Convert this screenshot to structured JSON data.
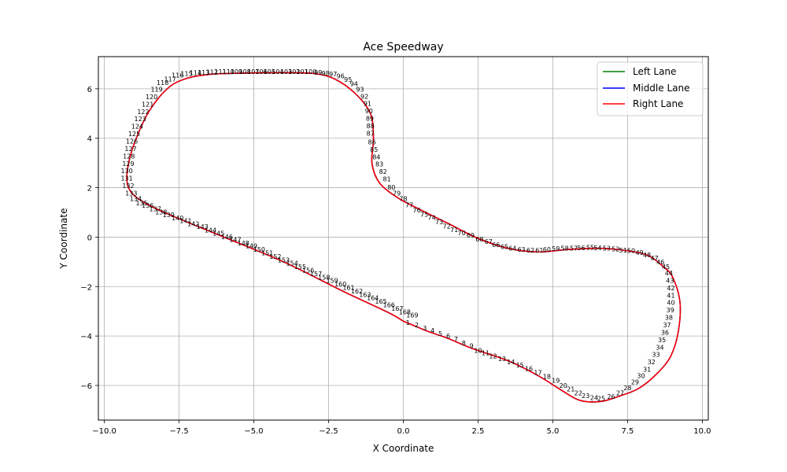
{
  "chart_data": {
    "type": "line",
    "title": "Ace Speedway",
    "xlabel": "X Coordinate",
    "ylabel": "Y Coordinate",
    "xlim": [
      -10.2,
      10.2
    ],
    "ylim": [
      -7.4,
      7.3
    ],
    "xticks": [
      -10.0,
      -7.5,
      -5.0,
      -2.5,
      0.0,
      2.5,
      5.0,
      7.5,
      10.0
    ],
    "xtick_labels": [
      "−10.0",
      "−7.5",
      "−5.0",
      "−2.5",
      "0.0",
      "2.5",
      "5.0",
      "7.5",
      "10.0"
    ],
    "yticks": [
      -6,
      -4,
      -2,
      0,
      2,
      4,
      6
    ],
    "ytick_labels": [
      "−6",
      "−4",
      "−2",
      "0",
      "2",
      "4",
      "6"
    ],
    "grid": true,
    "legend_position": "top-right",
    "series": [
      {
        "name": "Left Lane",
        "color": "#008000"
      },
      {
        "name": "Middle Lane",
        "color": "#0000ff"
      },
      {
        "name": "Right Lane",
        "color": "#ff0000"
      }
    ],
    "track_points": [
      [
        0.0,
        -3.4
      ],
      [
        0.3,
        -3.55
      ],
      [
        0.8,
        -3.8
      ],
      [
        1.5,
        -4.1
      ],
      [
        2.3,
        -4.5
      ],
      [
        3.5,
        -5.0
      ],
      [
        4.5,
        -5.6
      ],
      [
        5.3,
        -6.2
      ],
      [
        5.9,
        -6.6
      ],
      [
        6.6,
        -6.65
      ],
      [
        7.3,
        -6.4
      ],
      [
        7.9,
        -6.1
      ],
      [
        8.5,
        -5.5
      ],
      [
        8.95,
        -4.8
      ],
      [
        9.2,
        -3.8
      ],
      [
        9.25,
        -2.6
      ],
      [
        9.0,
        -1.6
      ],
      [
        8.7,
        -1.2
      ],
      [
        8.2,
        -0.75
      ],
      [
        7.5,
        -0.55
      ],
      [
        6.5,
        -0.45
      ],
      [
        5.5,
        -0.5
      ],
      [
        4.5,
        -0.6
      ],
      [
        3.5,
        -0.45
      ],
      [
        2.5,
        -0.05
      ],
      [
        1.5,
        0.55
      ],
      [
        0.5,
        1.15
      ],
      [
        -0.2,
        1.6
      ],
      [
        -0.8,
        2.2
      ],
      [
        -1.05,
        3.0
      ],
      [
        -1.0,
        4.0
      ],
      [
        -1.1,
        5.0
      ],
      [
        -1.6,
        5.8
      ],
      [
        -2.3,
        6.4
      ],
      [
        -3.0,
        6.62
      ],
      [
        -4.0,
        6.65
      ],
      [
        -5.5,
        6.63
      ],
      [
        -6.5,
        6.58
      ],
      [
        -7.3,
        6.4
      ],
      [
        -7.9,
        6.0
      ],
      [
        -8.5,
        5.1
      ],
      [
        -8.9,
        4.1
      ],
      [
        -9.15,
        3.2
      ],
      [
        -9.25,
        2.4
      ],
      [
        -9.15,
        1.9
      ],
      [
        -8.8,
        1.5
      ],
      [
        -8.0,
        1.0
      ],
      [
        -6.0,
        0.0
      ],
      [
        -4.0,
        -1.0
      ],
      [
        -2.0,
        -2.2
      ],
      [
        -0.5,
        -3.05
      ],
      [
        0.0,
        -3.4
      ]
    ],
    "waypoint_labels": [
      {
        "t": "1",
        "x": 0.15,
        "y": -3.45
      },
      {
        "t": "2",
        "x": 0.45,
        "y": -3.55
      },
      {
        "t": "3",
        "x": 0.72,
        "y": -3.68
      },
      {
        "t": "4",
        "x": 0.98,
        "y": -3.78
      },
      {
        "t": "5",
        "x": 1.24,
        "y": -3.9
      },
      {
        "t": "6",
        "x": 1.5,
        "y": -4.0
      },
      {
        "t": "7",
        "x": 1.76,
        "y": -4.12
      },
      {
        "t": "8",
        "x": 2.02,
        "y": -4.28
      },
      {
        "t": "9",
        "x": 2.28,
        "y": -4.4
      },
      {
        "t": "10",
        "x": 2.5,
        "y": -4.58
      },
      {
        "t": "11",
        "x": 2.75,
        "y": -4.68
      },
      {
        "t": "12",
        "x": 3.0,
        "y": -4.8
      },
      {
        "t": "13",
        "x": 3.3,
        "y": -4.92
      },
      {
        "t": "14",
        "x": 3.6,
        "y": -5.05
      },
      {
        "t": "15",
        "x": 3.9,
        "y": -5.18
      },
      {
        "t": "16",
        "x": 4.2,
        "y": -5.32
      },
      {
        "t": "17",
        "x": 4.5,
        "y": -5.48
      },
      {
        "t": "18",
        "x": 4.8,
        "y": -5.63
      },
      {
        "t": "19",
        "x": 5.1,
        "y": -5.8
      },
      {
        "t": "20",
        "x": 5.35,
        "y": -6.0
      },
      {
        "t": "21",
        "x": 5.6,
        "y": -6.15
      },
      {
        "t": "22",
        "x": 5.85,
        "y": -6.3
      },
      {
        "t": "23",
        "x": 6.1,
        "y": -6.42
      },
      {
        "t": "24",
        "x": 6.38,
        "y": -6.5
      },
      {
        "t": "25",
        "x": 6.62,
        "y": -6.52
      },
      {
        "t": "26",
        "x": 6.95,
        "y": -6.45
      },
      {
        "t": "27",
        "x": 7.25,
        "y": -6.3
      },
      {
        "t": "28",
        "x": 7.5,
        "y": -6.1
      },
      {
        "t": "29",
        "x": 7.75,
        "y": -5.85
      },
      {
        "t": "30",
        "x": 7.95,
        "y": -5.6
      },
      {
        "t": "31",
        "x": 8.15,
        "y": -5.35
      },
      {
        "t": "32",
        "x": 8.3,
        "y": -5.05
      },
      {
        "t": "33",
        "x": 8.45,
        "y": -4.75
      },
      {
        "t": "34",
        "x": 8.58,
        "y": -4.45
      },
      {
        "t": "35",
        "x": 8.65,
        "y": -4.15
      },
      {
        "t": "36",
        "x": 8.75,
        "y": -3.85
      },
      {
        "t": "37",
        "x": 8.82,
        "y": -3.55
      },
      {
        "t": "38",
        "x": 8.88,
        "y": -3.25
      },
      {
        "t": "39",
        "x": 8.93,
        "y": -2.95
      },
      {
        "t": "40",
        "x": 8.95,
        "y": -2.65
      },
      {
        "t": "41",
        "x": 8.95,
        "y": -2.35
      },
      {
        "t": "42",
        "x": 8.95,
        "y": -2.05
      },
      {
        "t": "43",
        "x": 8.92,
        "y": -1.75
      },
      {
        "t": "44",
        "x": 8.88,
        "y": -1.45
      },
      {
        "t": "45",
        "x": 8.78,
        "y": -1.2
      },
      {
        "t": "46",
        "x": 8.6,
        "y": -1.0
      },
      {
        "t": "47",
        "x": 8.4,
        "y": -0.85
      },
      {
        "t": "48",
        "x": 8.15,
        "y": -0.72
      },
      {
        "t": "49",
        "x": 7.9,
        "y": -0.62
      },
      {
        "t": "50",
        "x": 7.62,
        "y": -0.55
      },
      {
        "t": "51",
        "x": 7.35,
        "y": -0.52
      },
      {
        "t": "52",
        "x": 7.1,
        "y": -0.48
      },
      {
        "t": "53",
        "x": 6.8,
        "y": -0.45
      },
      {
        "t": "54",
        "x": 6.5,
        "y": -0.43
      },
      {
        "t": "55",
        "x": 6.25,
        "y": -0.42
      },
      {
        "t": "56",
        "x": 5.95,
        "y": -0.43
      },
      {
        "t": "57",
        "x": 5.7,
        "y": -0.44
      },
      {
        "t": "58",
        "x": 5.4,
        "y": -0.45
      },
      {
        "t": "59",
        "x": 5.1,
        "y": -0.47
      },
      {
        "t": "60",
        "x": 4.8,
        "y": -0.5
      },
      {
        "t": "61",
        "x": 4.55,
        "y": -0.52
      },
      {
        "t": "62",
        "x": 4.25,
        "y": -0.52
      },
      {
        "t": "63",
        "x": 3.95,
        "y": -0.5
      },
      {
        "t": "64",
        "x": 3.65,
        "y": -0.45
      },
      {
        "t": "65",
        "x": 3.38,
        "y": -0.38
      },
      {
        "t": "66",
        "x": 3.1,
        "y": -0.3
      },
      {
        "t": "67",
        "x": 2.85,
        "y": -0.18
      },
      {
        "t": "68",
        "x": 2.55,
        "y": -0.08
      },
      {
        "t": "69",
        "x": 2.25,
        "y": 0.08
      },
      {
        "t": "70",
        "x": 1.95,
        "y": 0.18
      },
      {
        "t": "71",
        "x": 1.7,
        "y": 0.3
      },
      {
        "t": "72",
        "x": 1.45,
        "y": 0.45
      },
      {
        "t": "73",
        "x": 1.2,
        "y": 0.62
      },
      {
        "t": "74",
        "x": 0.95,
        "y": 0.8
      },
      {
        "t": "75",
        "x": 0.7,
        "y": 0.92
      },
      {
        "t": "76",
        "x": 0.45,
        "y": 1.1
      },
      {
        "t": "77",
        "x": 0.2,
        "y": 1.3
      },
      {
        "t": "78",
        "x": 0.0,
        "y": 1.55
      },
      {
        "t": "79",
        "x": -0.22,
        "y": 1.78
      },
      {
        "t": "80",
        "x": -0.4,
        "y": 2.02
      },
      {
        "t": "81",
        "x": -0.55,
        "y": 2.35
      },
      {
        "t": "82",
        "x": -0.68,
        "y": 2.65
      },
      {
        "t": "83",
        "x": -0.8,
        "y": 2.95
      },
      {
        "t": "84",
        "x": -0.9,
        "y": 3.25
      },
      {
        "t": "85",
        "x": -0.98,
        "y": 3.55
      },
      {
        "t": "86",
        "x": -1.05,
        "y": 3.85
      },
      {
        "t": "87",
        "x": -1.1,
        "y": 4.2
      },
      {
        "t": "88",
        "x": -1.1,
        "y": 4.5
      },
      {
        "t": "89",
        "x": -1.12,
        "y": 4.8
      },
      {
        "t": "90",
        "x": -1.15,
        "y": 5.1
      },
      {
        "t": "91",
        "x": -1.2,
        "y": 5.4
      },
      {
        "t": "92",
        "x": -1.3,
        "y": 5.7
      },
      {
        "t": "93",
        "x": -1.45,
        "y": 5.98
      },
      {
        "t": "94",
        "x": -1.65,
        "y": 6.2
      },
      {
        "t": "95",
        "x": -1.85,
        "y": 6.38
      },
      {
        "t": "96",
        "x": -2.1,
        "y": 6.52
      },
      {
        "t": "97",
        "x": -2.35,
        "y": 6.6
      },
      {
        "t": "98",
        "x": -2.6,
        "y": 6.63
      },
      {
        "t": "99",
        "x": -2.85,
        "y": 6.66
      },
      {
        "t": "100",
        "x": -3.1,
        "y": 6.69
      },
      {
        "t": "101",
        "x": -3.38,
        "y": 6.7
      },
      {
        "t": "102",
        "x": -3.65,
        "y": 6.7
      },
      {
        "t": "103",
        "x": -3.92,
        "y": 6.7
      },
      {
        "t": "104",
        "x": -4.2,
        "y": 6.7
      },
      {
        "t": "105",
        "x": -4.48,
        "y": 6.7
      },
      {
        "t": "106",
        "x": -4.75,
        "y": 6.7
      },
      {
        "t": "107",
        "x": -5.02,
        "y": 6.7
      },
      {
        "t": "108",
        "x": -5.3,
        "y": 6.7
      },
      {
        "t": "109",
        "x": -5.58,
        "y": 6.7
      },
      {
        "t": "110",
        "x": -5.85,
        "y": 6.7
      },
      {
        "t": "111",
        "x": -6.12,
        "y": 6.7
      },
      {
        "t": "112",
        "x": -6.4,
        "y": 6.68
      },
      {
        "t": "113",
        "x": -6.68,
        "y": 6.66
      },
      {
        "t": "114",
        "x": -6.95,
        "y": 6.64
      },
      {
        "t": "115",
        "x": -7.25,
        "y": 6.62
      },
      {
        "t": "116",
        "x": -7.55,
        "y": 6.55
      },
      {
        "t": "117",
        "x": -7.8,
        "y": 6.4
      },
      {
        "t": "118",
        "x": -8.05,
        "y": 6.25
      },
      {
        "t": "119",
        "x": -8.25,
        "y": 5.98
      },
      {
        "t": "120",
        "x": -8.42,
        "y": 5.68
      },
      {
        "t": "121",
        "x": -8.55,
        "y": 5.38
      },
      {
        "t": "122",
        "x": -8.7,
        "y": 5.08
      },
      {
        "t": "123",
        "x": -8.8,
        "y": 4.78
      },
      {
        "t": "124",
        "x": -8.9,
        "y": 4.48
      },
      {
        "t": "125",
        "x": -9.0,
        "y": 4.18
      },
      {
        "t": "126",
        "x": -9.08,
        "y": 3.88
      },
      {
        "t": "127",
        "x": -9.12,
        "y": 3.58
      },
      {
        "t": "128",
        "x": -9.18,
        "y": 3.28
      },
      {
        "t": "129",
        "x": -9.2,
        "y": 2.98
      },
      {
        "t": "130",
        "x": -9.25,
        "y": 2.68
      },
      {
        "t": "131",
        "x": -9.25,
        "y": 2.38
      },
      {
        "t": "132",
        "x": -9.2,
        "y": 2.08
      },
      {
        "t": "133",
        "x": -9.1,
        "y": 1.78
      },
      {
        "t": "134",
        "x": -8.95,
        "y": 1.55
      },
      {
        "t": "135",
        "x": -8.75,
        "y": 1.38
      },
      {
        "t": "136",
        "x": -8.55,
        "y": 1.28
      },
      {
        "t": "137",
        "x": -8.3,
        "y": 1.15
      },
      {
        "t": "138",
        "x": -8.1,
        "y": 1.02
      },
      {
        "t": "139",
        "x": -7.85,
        "y": 0.9
      },
      {
        "t": "140",
        "x": -7.55,
        "y": 0.78
      },
      {
        "t": "141",
        "x": -7.28,
        "y": 0.66
      },
      {
        "t": "142",
        "x": -7.02,
        "y": 0.54
      },
      {
        "t": "143",
        "x": -6.72,
        "y": 0.42
      },
      {
        "t": "144",
        "x": -6.45,
        "y": 0.28
      },
      {
        "t": "145",
        "x": -6.18,
        "y": 0.16
      },
      {
        "t": "146",
        "x": -5.9,
        "y": 0.02
      },
      {
        "t": "147",
        "x": -5.62,
        "y": -0.1
      },
      {
        "t": "148",
        "x": -5.35,
        "y": -0.24
      },
      {
        "t": "149",
        "x": -5.08,
        "y": -0.36
      },
      {
        "t": "150",
        "x": -4.82,
        "y": -0.5
      },
      {
        "t": "151",
        "x": -4.55,
        "y": -0.64
      },
      {
        "t": "152",
        "x": -4.28,
        "y": -0.78
      },
      {
        "t": "153",
        "x": -4.0,
        "y": -0.92
      },
      {
        "t": "154",
        "x": -3.72,
        "y": -1.06
      },
      {
        "t": "155",
        "x": -3.45,
        "y": -1.2
      },
      {
        "t": "156",
        "x": -3.18,
        "y": -1.34
      },
      {
        "t": "157",
        "x": -2.92,
        "y": -1.48
      },
      {
        "t": "158",
        "x": -2.65,
        "y": -1.62
      },
      {
        "t": "159",
        "x": -2.38,
        "y": -1.76
      },
      {
        "t": "160",
        "x": -2.1,
        "y": -1.9
      },
      {
        "t": "161",
        "x": -1.83,
        "y": -2.04
      },
      {
        "t": "162",
        "x": -1.55,
        "y": -2.18
      },
      {
        "t": "163",
        "x": -1.28,
        "y": -2.32
      },
      {
        "t": "164",
        "x": -1.02,
        "y": -2.46
      },
      {
        "t": "165",
        "x": -0.75,
        "y": -2.6
      },
      {
        "t": "166",
        "x": -0.48,
        "y": -2.74
      },
      {
        "t": "167",
        "x": -0.2,
        "y": -2.88
      },
      {
        "t": "168",
        "x": 0.05,
        "y": -3.02
      },
      {
        "t": "169",
        "x": 0.3,
        "y": -3.16
      }
    ]
  }
}
